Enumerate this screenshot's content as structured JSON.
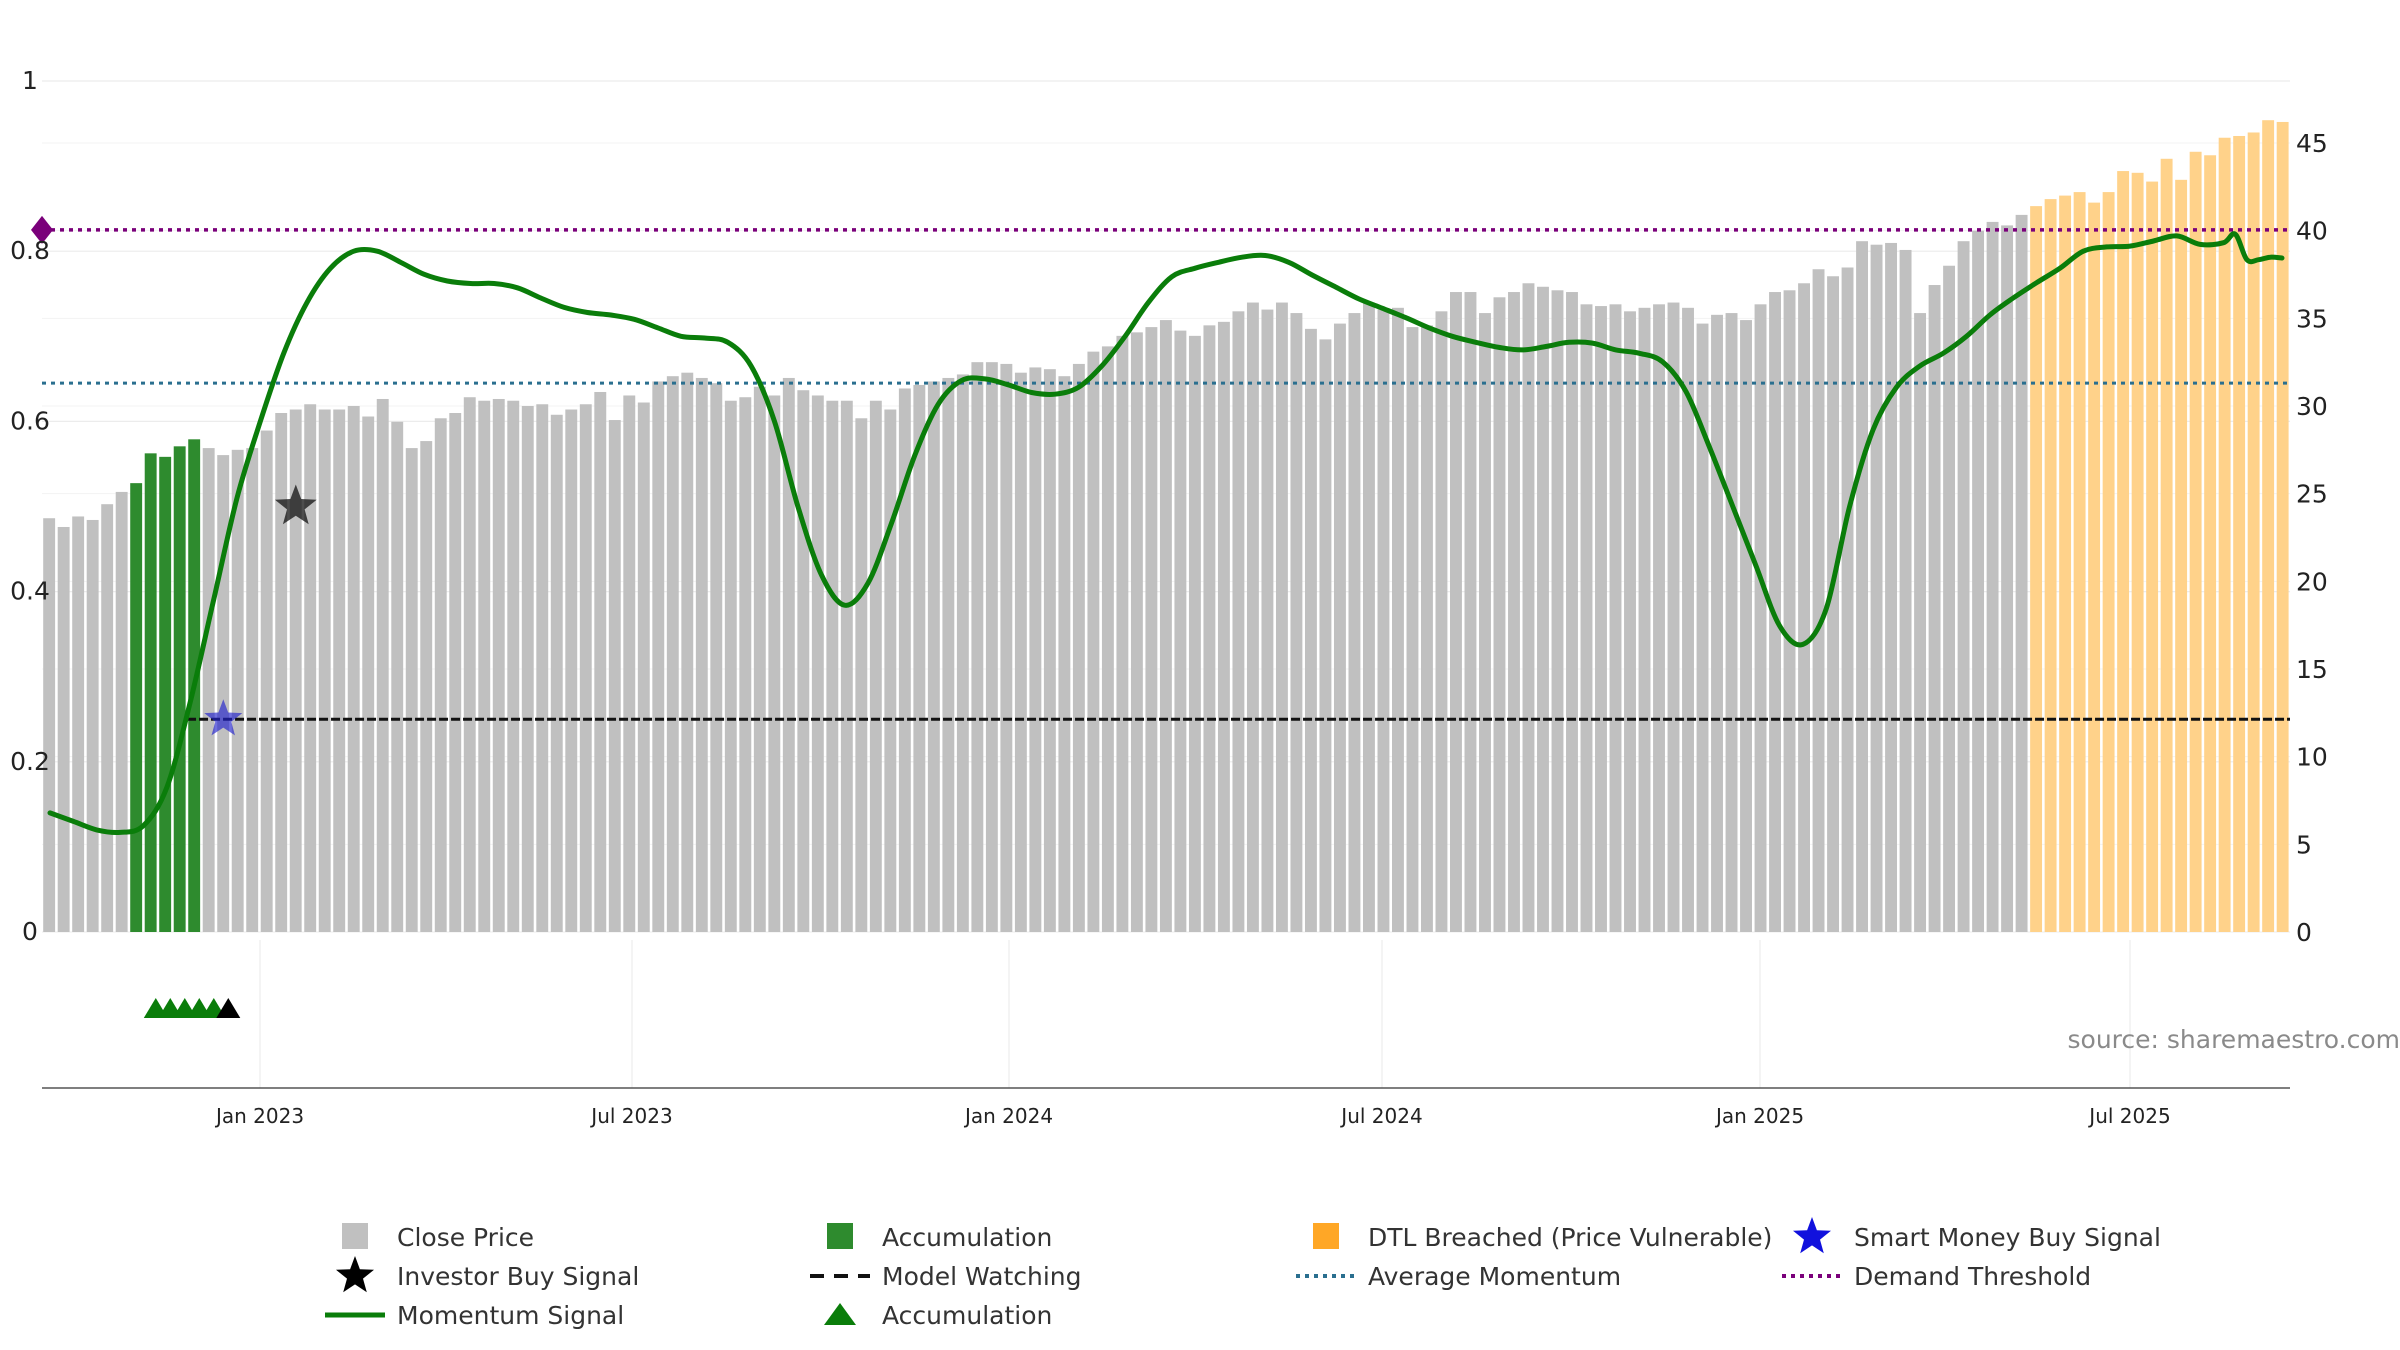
{
  "chart_data": {
    "type": "bar",
    "source_text": "source: sharemaestro.com",
    "x_ticks": [
      "Jan 2023",
      "Jul 2023",
      "Jan 2024",
      "Jul 2024",
      "Jan 2025",
      "Jul 2025"
    ],
    "left_axis": {
      "range": [
        0,
        1
      ],
      "ticks": [
        "0",
        "0.2",
        "0.4",
        "0.6",
        "0.8",
        "1"
      ]
    },
    "right_axis": {
      "range": [
        0,
        45
      ],
      "ticks": [
        "0",
        "5",
        "10",
        "15",
        "20",
        "25",
        "30",
        "35",
        "40",
        "45"
      ]
    },
    "grid": true,
    "legend_position": "bottom",
    "colors": {
      "close_price": "#c0c0c0",
      "accumulation": "#2e8b2e",
      "dtl_breached": "#ffd28a",
      "momentum": "#0a7d0a",
      "average_momentum": "#2a6f8f",
      "demand_threshold": "#7a007a",
      "model_watching": "#111111",
      "smart_money": "#2222cc"
    },
    "series": [
      {
        "name": "Close Price",
        "axis": "right",
        "values": [
          23.6,
          23.1,
          23.7,
          23.5,
          24.4,
          25.1,
          25.6,
          27.3,
          27.1,
          27.7,
          28.1,
          27.6,
          27.2,
          27.5,
          27.6,
          28.6,
          29.6,
          29.8,
          30.1,
          29.8,
          29.8,
          30.0,
          29.4,
          30.4,
          29.1,
          27.6,
          28.0,
          29.3,
          29.6,
          30.5,
          30.3,
          30.4,
          30.3,
          30.0,
          30.1,
          29.5,
          29.8,
          30.1,
          30.8,
          29.2,
          30.6,
          30.2,
          31.4,
          31.7,
          31.9,
          31.6,
          31.3,
          30.3,
          30.5,
          31.1,
          30.6,
          31.6,
          30.9,
          30.6,
          30.3,
          30.3,
          29.3,
          30.3,
          29.8,
          31.0,
          31.2,
          31.4,
          31.6,
          31.8,
          32.5,
          32.5,
          32.4,
          31.9,
          32.2,
          32.1,
          31.7,
          32.4,
          33.1,
          33.4,
          34.0,
          34.2,
          34.5,
          34.9,
          34.3,
          34.0,
          34.6,
          34.8,
          35.4,
          35.9,
          35.5,
          35.9,
          35.3,
          34.4,
          33.8,
          34.7,
          35.3,
          35.9,
          35.5,
          35.6,
          34.5,
          34.6,
          35.4,
          36.5,
          36.5,
          35.3,
          36.2,
          36.5,
          37.0,
          36.8,
          36.6,
          36.5,
          35.8,
          35.7,
          35.8,
          35.4,
          35.6,
          35.8,
          35.9,
          35.6,
          34.7,
          35.2,
          35.3,
          34.9,
          35.8,
          36.5,
          36.6,
          37.0,
          37.8,
          37.4,
          37.9,
          39.4,
          39.2,
          39.3,
          38.9,
          35.3,
          36.9,
          38.0,
          39.4,
          40.0,
          40.5,
          40.3,
          40.9,
          41.4,
          41.8,
          42.0,
          42.2,
          41.6,
          42.2,
          43.4,
          43.3,
          42.8,
          44.1,
          42.9,
          44.5,
          44.3,
          45.3,
          45.4,
          45.6,
          46.3,
          46.2
        ],
        "segments": [
          {
            "label": "Accumulation",
            "from_index": 6,
            "to_index": 10
          },
          {
            "label": "DTL Breached (Price Vulnerable)",
            "from_index": 137,
            "to_index": 156
          }
        ]
      },
      {
        "name": "Momentum Signal",
        "axis": "left",
        "points": [
          [
            0,
            0.14
          ],
          [
            2,
            0.13
          ],
          [
            4,
            0.12
          ],
          [
            6,
            0.117
          ],
          [
            8,
            0.125
          ],
          [
            10,
            0.17
          ],
          [
            12,
            0.27
          ],
          [
            14,
            0.39
          ],
          [
            16,
            0.51
          ],
          [
            18,
            0.6
          ],
          [
            20,
            0.68
          ],
          [
            22,
            0.74
          ],
          [
            24,
            0.78
          ],
          [
            26,
            0.8
          ],
          [
            28,
            0.8
          ],
          [
            30,
            0.787
          ],
          [
            32,
            0.773
          ],
          [
            34,
            0.765
          ],
          [
            36,
            0.762
          ],
          [
            38,
            0.762
          ],
          [
            40,
            0.757
          ],
          [
            42,
            0.745
          ],
          [
            44,
            0.734
          ],
          [
            46,
            0.728
          ],
          [
            48,
            0.725
          ],
          [
            50,
            0.72
          ],
          [
            52,
            0.71
          ],
          [
            54,
            0.7
          ],
          [
            56,
            0.698
          ],
          [
            58,
            0.693
          ],
          [
            60,
            0.665
          ],
          [
            62,
            0.6
          ],
          [
            64,
            0.5
          ],
          [
            66,
            0.42
          ],
          [
            68,
            0.384
          ],
          [
            70,
            0.41
          ],
          [
            72,
            0.48
          ],
          [
            74,
            0.56
          ],
          [
            76,
            0.62
          ],
          [
            78,
            0.648
          ],
          [
            80,
            0.65
          ],
          [
            82,
            0.643
          ],
          [
            84,
            0.634
          ],
          [
            86,
            0.632
          ],
          [
            88,
            0.64
          ],
          [
            90,
            0.665
          ],
          [
            92,
            0.7
          ],
          [
            94,
            0.74
          ],
          [
            96,
            0.77
          ],
          [
            98,
            0.78
          ],
          [
            100,
            0.787
          ],
          [
            102,
            0.793
          ],
          [
            104,
            0.795
          ],
          [
            106,
            0.787
          ],
          [
            108,
            0.772
          ],
          [
            110,
            0.758
          ],
          [
            112,
            0.744
          ],
          [
            114,
            0.733
          ],
          [
            116,
            0.722
          ],
          [
            118,
            0.71
          ],
          [
            120,
            0.7
          ],
          [
            122,
            0.693
          ],
          [
            124,
            0.687
          ],
          [
            126,
            0.684
          ],
          [
            128,
            0.688
          ],
          [
            130,
            0.693
          ],
          [
            132,
            0.692
          ],
          [
            134,
            0.684
          ],
          [
            136,
            0.68
          ],
          [
            138,
            0.67
          ],
          [
            140,
            0.635
          ],
          [
            142,
            0.57
          ],
          [
            144,
            0.5
          ],
          [
            146,
            0.43
          ],
          [
            148,
            0.36
          ],
          [
            150,
            0.338
          ],
          [
            152,
            0.38
          ],
          [
            154,
            0.5
          ],
          [
            156,
            0.59
          ],
          [
            158,
            0.64
          ],
          [
            160,
            0.665
          ],
          [
            162,
            0.68
          ],
          [
            164,
            0.7
          ],
          [
            166,
            0.725
          ],
          [
            168,
            0.745
          ],
          [
            170,
            0.763
          ],
          [
            172,
            0.78
          ],
          [
            174,
            0.8
          ],
          [
            176,
            0.805
          ],
          [
            178,
            0.806
          ],
          [
            180,
            0.812
          ],
          [
            182,
            0.818
          ],
          [
            184,
            0.808
          ],
          [
            186,
            0.81
          ],
          [
            187,
            0.82
          ],
          [
            188,
            0.79
          ],
          [
            189,
            0.79
          ],
          [
            190,
            0.793
          ],
          [
            191,
            0.792
          ]
        ],
        "point_count": 192
      },
      {
        "name": "Average Momentum",
        "axis": "left",
        "value": 0.645
      },
      {
        "name": "Demand Threshold",
        "axis": "left",
        "value": 0.825
      },
      {
        "name": "Model Watching",
        "axis": "left",
        "value": 0.25
      },
      {
        "name": "Investor Buy Signal",
        "axis": "left",
        "points": [
          [
            17.5,
            0.5
          ]
        ]
      },
      {
        "name": "Smart Money Buy Signal",
        "axis": "left",
        "points": [
          [
            12.5,
            0.25
          ]
        ]
      },
      {
        "name": "Accumulation",
        "marker": "triangle",
        "points": [
          7,
          8,
          9,
          10,
          11
        ],
        "black_point": 12
      }
    ]
  },
  "legend": [
    {
      "label": "Close Price",
      "icon": "square",
      "color": "#c0c0c0"
    },
    {
      "label": "Accumulation",
      "icon": "square",
      "color": "#2e8b2e"
    },
    {
      "label": "DTL Breached (Price Vulnerable)",
      "icon": "square",
      "color": "#ffa726"
    },
    {
      "label": "Smart Money Buy Signal",
      "icon": "star",
      "color": "#1111dd"
    },
    {
      "label": "Investor Buy Signal",
      "icon": "star",
      "color": "#000000"
    },
    {
      "label": "Model Watching",
      "icon": "dash",
      "color": "#111111"
    },
    {
      "label": "Average Momentum",
      "icon": "dot",
      "color": "#2a6f8f"
    },
    {
      "label": "Demand Threshold",
      "icon": "dot",
      "color": "#7a007a"
    },
    {
      "label": "Momentum Signal",
      "icon": "line",
      "color": "#0a7d0a"
    },
    {
      "label": "Accumulation",
      "icon": "triangle",
      "color": "#0a7d0a"
    }
  ]
}
